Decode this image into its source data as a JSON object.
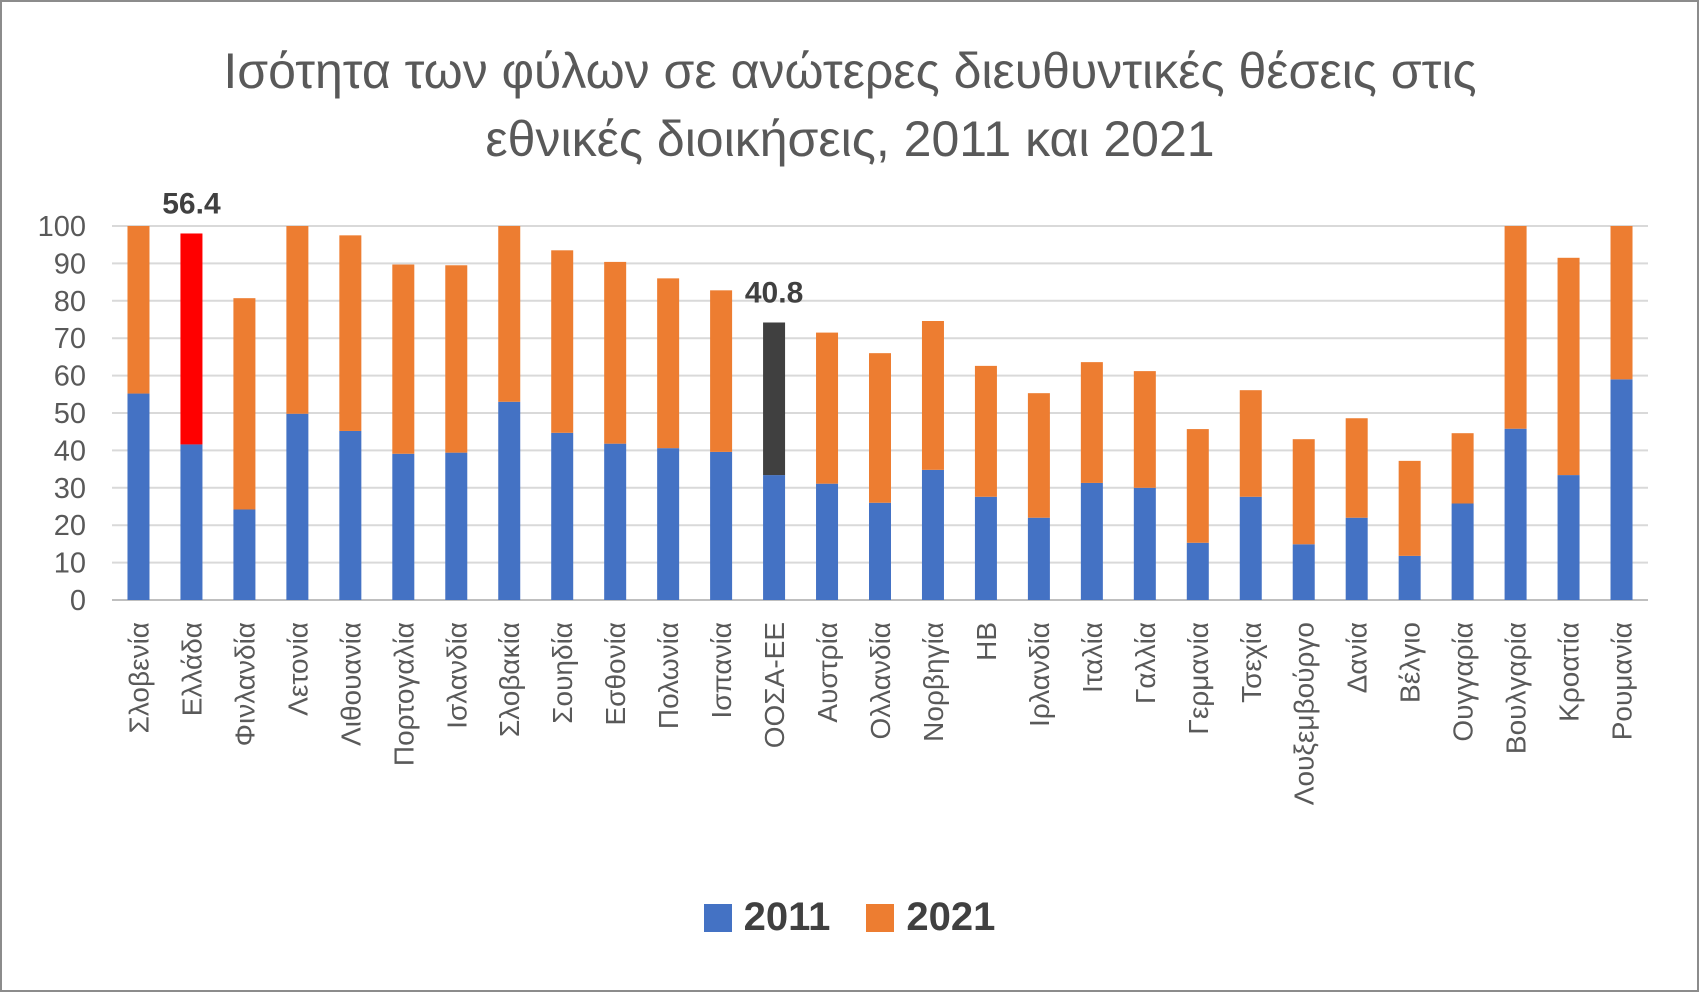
{
  "chart_data": {
    "type": "bar",
    "stacked": true,
    "title_lines": [
      "Ισότητα των φύλων σε ανώτερες διευθυντικές θέσεις στις",
      "εθνικές διοικήσεις, 2011 και 2021"
    ],
    "xlabel": "",
    "ylabel": "",
    "ylim": [
      0,
      100
    ],
    "yticks": [
      0,
      10,
      20,
      30,
      40,
      50,
      60,
      70,
      80,
      90,
      100
    ],
    "grid": true,
    "legend_position": "bottom",
    "categories": [
      "Σλοβενία",
      "Ελλάδα",
      "Φινλανδία",
      "Λετονία",
      "Λιθουανία",
      "Πορτογαλία",
      "Ισλανδία",
      "Σλοβακία",
      "Σουηδία",
      "Εσθονία",
      "Πολωνία",
      "Ισπανία",
      "ΟΟΣΑ-ΕΕ",
      "Αυστρία",
      "Ολλανδία",
      "Νορβηγία",
      "ΗΒ",
      "Ιρλανδία",
      "Ιταλία",
      "Γαλλία",
      "Γερμανία",
      "Τσεχία",
      "Λουξεμβούργο",
      "Δανία",
      "Βέλγιο",
      "Ουγγαρία",
      "Βουλγαρία",
      "Κροατία",
      "Ρουμανία"
    ],
    "series": [
      {
        "name": "2011",
        "color": "#4472C4",
        "values": [
          55.2,
          41.6,
          24.2,
          49.8,
          45.2,
          39.1,
          39.4,
          53.0,
          44.7,
          41.8,
          40.6,
          39.6,
          33.4,
          31.1,
          26.0,
          34.8,
          27.6,
          22.0,
          31.3,
          30.0,
          15.3,
          27.6,
          14.9,
          22.0,
          11.8,
          25.8,
          45.8,
          33.4,
          59.0
        ]
      },
      {
        "name": "2021",
        "color": "#ED7D31",
        "values": [
          44.8,
          56.4,
          56.5,
          50.2,
          52.3,
          50.6,
          50.1,
          47.0,
          48.8,
          48.6,
          45.4,
          43.2,
          40.8,
          40.4,
          40.0,
          39.8,
          35.0,
          33.3,
          32.3,
          31.2,
          30.4,
          28.5,
          28.1,
          26.6,
          25.4,
          18.8,
          54.2,
          58.1,
          41.0
        ]
      }
    ],
    "highlights": [
      {
        "category": "Ελλάδα",
        "series": "2021",
        "color": "#FF0000",
        "label": "56.4"
      },
      {
        "category": "ΟΟΣΑ-ΕΕ",
        "series": "2021",
        "color": "#404040",
        "label": "40.8"
      }
    ]
  },
  "legend": {
    "items": [
      {
        "label": "2011",
        "color": "#4472C4"
      },
      {
        "label": "2021",
        "color": "#ED7D31"
      }
    ]
  }
}
